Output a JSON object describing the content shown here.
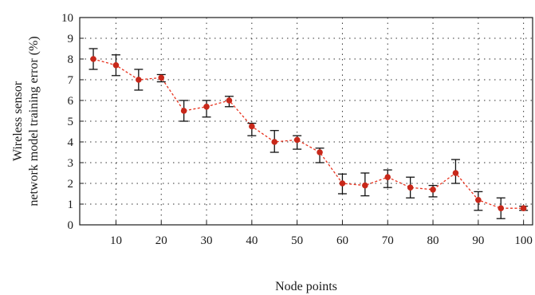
{
  "chart_data": {
    "type": "line",
    "title": "",
    "xlabel": "Node points",
    "ylabel": [
      "Wireless sensor",
      "network model training error (%)"
    ],
    "xlim": [
      2,
      102
    ],
    "ylim": [
      0,
      10
    ],
    "xticks": [
      10,
      20,
      30,
      40,
      50,
      60,
      70,
      80,
      90,
      100
    ],
    "yticks": [
      0,
      1,
      2,
      3,
      4,
      5,
      6,
      7,
      8,
      9,
      10
    ],
    "grid": true,
    "series": [
      {
        "x": [
          5,
          10,
          15,
          20,
          25,
          30,
          35,
          40,
          45,
          50,
          55,
          60,
          65,
          70,
          75,
          80,
          85,
          90,
          95,
          100
        ],
        "y": [
          8.0,
          7.7,
          7.0,
          7.1,
          5.5,
          5.7,
          6.0,
          4.75,
          4.0,
          4.1,
          3.5,
          2.0,
          1.9,
          2.3,
          1.8,
          1.7,
          2.5,
          1.2,
          0.8,
          0.8
        ],
        "err_low": [
          7.5,
          7.2,
          6.5,
          6.9,
          5.0,
          5.2,
          5.7,
          4.3,
          3.5,
          3.65,
          3.0,
          1.5,
          1.4,
          1.8,
          1.3,
          1.35,
          2.0,
          0.7,
          0.3,
          0.7
        ],
        "err_high": [
          8.5,
          8.2,
          7.5,
          7.25,
          6.0,
          6.0,
          6.2,
          4.9,
          4.55,
          4.3,
          3.7,
          2.45,
          2.5,
          2.65,
          2.3,
          1.9,
          3.15,
          1.6,
          1.3,
          0.9
        ]
      }
    ],
    "colors": {
      "line": "#e8321e",
      "marker": "#c8281a",
      "errorbar": "#111111",
      "grid": "#333333"
    }
  }
}
